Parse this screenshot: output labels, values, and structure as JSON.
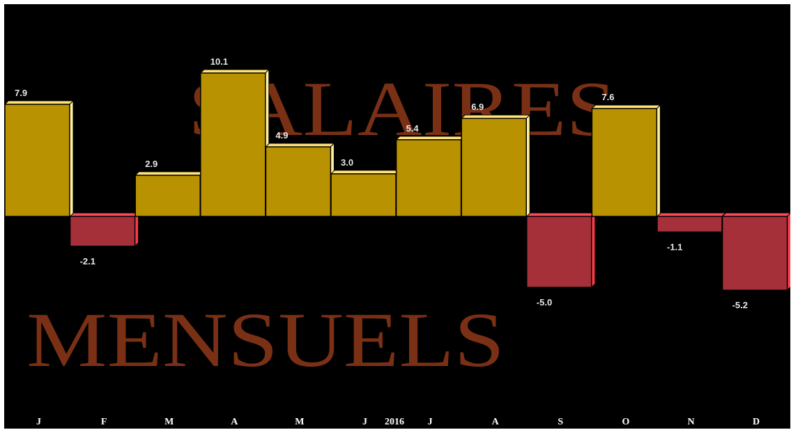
{
  "chart_data": {
    "type": "bar",
    "title_words": [
      "SALAIRES",
      "MENSUELS"
    ],
    "year_label": "2016",
    "categories": [
      "J",
      "F",
      "M",
      "A",
      "M",
      "J",
      "J",
      "A",
      "S",
      "O",
      "N",
      "D"
    ],
    "values": [
      7.9,
      -2.1,
      2.9,
      10.1,
      4.9,
      3.0,
      5.4,
      6.9,
      -5.0,
      7.6,
      -1.1,
      -5.2
    ],
    "value_labels": [
      "7.9",
      "-2.1",
      "2.9",
      "10.1",
      "4.9",
      "3.0",
      "5.4",
      "6.9",
      "-5.0",
      "7.6",
      "-1.1",
      "-5.2"
    ],
    "ylim": [
      -5.2,
      10.1
    ],
    "grid": false,
    "colors": {
      "background": "#000000",
      "title": "#7a3015",
      "positive_front": "#b89200",
      "positive_top": "#ffe27a",
      "positive_side": "#fff0a0",
      "negative_front": "#a6303a",
      "negative_top": "#ff4a5a",
      "negative_side": "#ff3a4a",
      "label": "#e8e8e8",
      "tick": "#ffffff"
    }
  }
}
